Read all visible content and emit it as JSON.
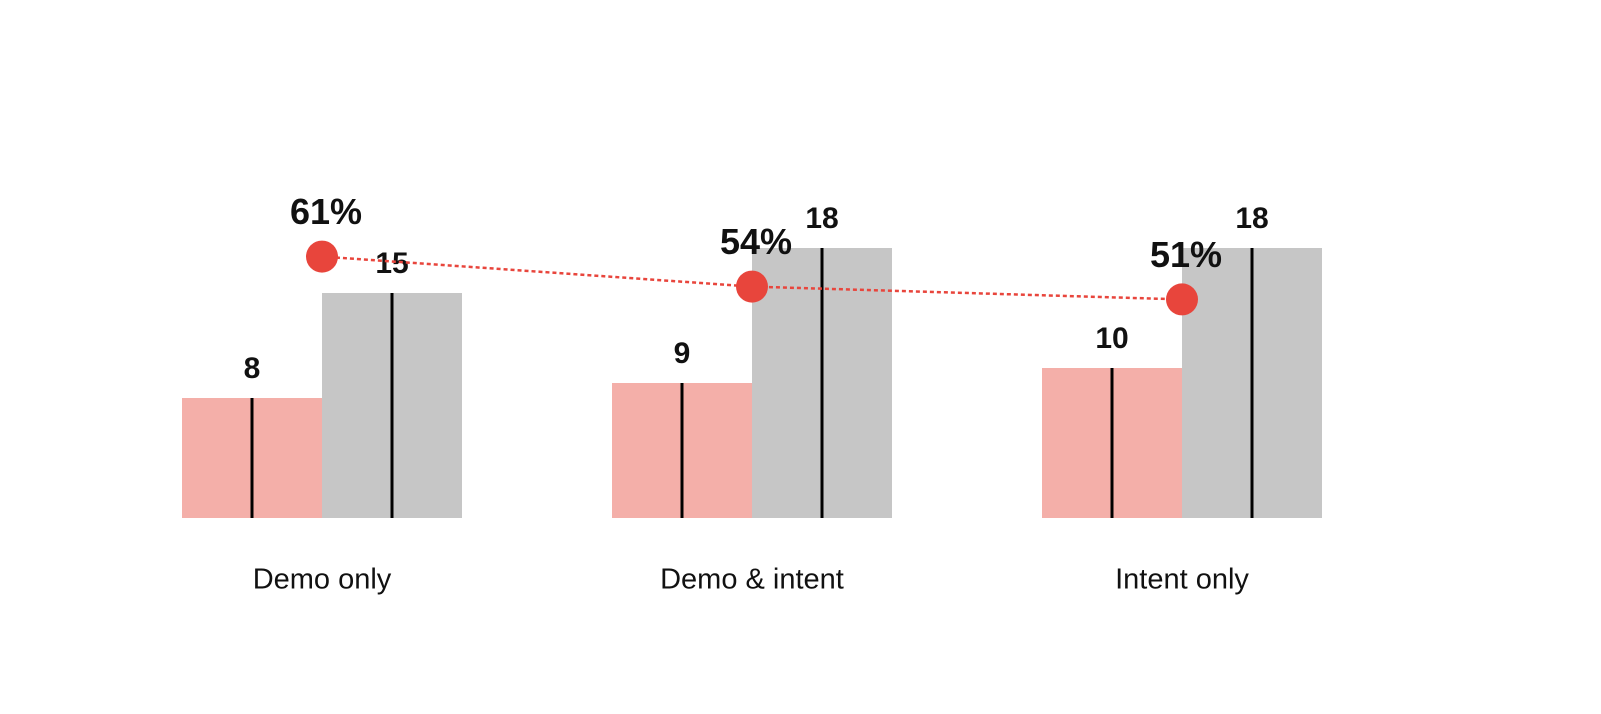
{
  "chart_data": {
    "type": "bar",
    "categories": [
      "Demo only",
      "Demo & intent",
      "Intent only"
    ],
    "ylim": [
      0,
      20
    ],
    "y2lim": [
      0,
      70
    ],
    "series": [
      {
        "type": "bar",
        "color": "#f4afa9",
        "values": [
          8,
          9,
          10
        ]
      },
      {
        "type": "bar",
        "color": "#c6c6c6",
        "values": [
          15,
          18,
          18
        ]
      },
      {
        "type": "line",
        "axis": "y2",
        "color": "#e8453c",
        "values": [
          61,
          54,
          51
        ],
        "value_labels": [
          "61%",
          "54%",
          "51%"
        ]
      }
    ]
  }
}
